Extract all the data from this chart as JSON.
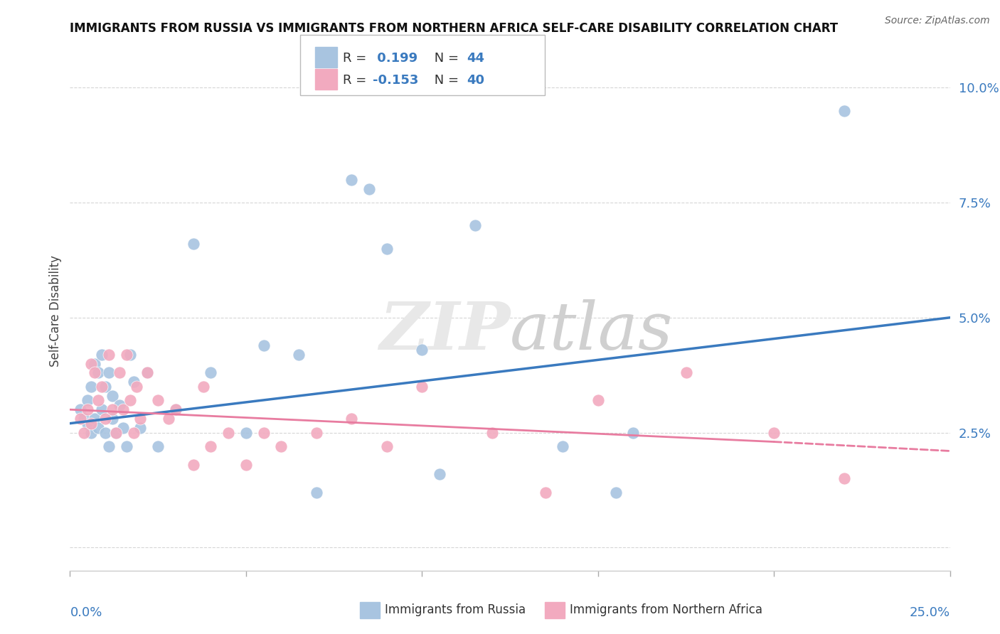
{
  "title": "IMMIGRANTS FROM RUSSIA VS IMMIGRANTS FROM NORTHERN AFRICA SELF-CARE DISABILITY CORRELATION CHART",
  "source": "Source: ZipAtlas.com",
  "ylabel": "Self-Care Disability",
  "xlim": [
    0.0,
    0.25
  ],
  "ylim": [
    -0.005,
    0.108
  ],
  "yticks": [
    0.0,
    0.025,
    0.05,
    0.075,
    0.1
  ],
  "ytick_labels": [
    "",
    "2.5%",
    "5.0%",
    "7.5%",
    "10.0%"
  ],
  "russia_R": 0.199,
  "russia_N": 44,
  "nafr_R": -0.153,
  "nafr_N": 40,
  "russia_color": "#a8c4e0",
  "nafr_color": "#f2aabf",
  "russia_line_color": "#3a7abf",
  "nafr_line_color": "#e87ca0",
  "russia_line_x0": 0.0,
  "russia_line_y0": 0.027,
  "russia_line_x1": 0.25,
  "russia_line_y1": 0.05,
  "nafr_line_x0": 0.0,
  "nafr_line_y0": 0.03,
  "nafr_line_solid_x1": 0.2,
  "nafr_line_solid_y1": 0.023,
  "nafr_line_dash_x1": 0.25,
  "nafr_line_dash_y1": 0.021,
  "russia_scatter_x": [
    0.003,
    0.004,
    0.005,
    0.005,
    0.006,
    0.006,
    0.007,
    0.007,
    0.008,
    0.008,
    0.009,
    0.009,
    0.01,
    0.01,
    0.011,
    0.011,
    0.012,
    0.012,
    0.013,
    0.014,
    0.015,
    0.016,
    0.017,
    0.018,
    0.02,
    0.022,
    0.025,
    0.03,
    0.035,
    0.04,
    0.05,
    0.055,
    0.065,
    0.07,
    0.08,
    0.085,
    0.09,
    0.1,
    0.105,
    0.115,
    0.14,
    0.155,
    0.22,
    0.16
  ],
  "russia_scatter_y": [
    0.03,
    0.028,
    0.032,
    0.027,
    0.035,
    0.025,
    0.04,
    0.028,
    0.038,
    0.026,
    0.042,
    0.03,
    0.035,
    0.025,
    0.038,
    0.022,
    0.028,
    0.033,
    0.025,
    0.031,
    0.026,
    0.022,
    0.042,
    0.036,
    0.026,
    0.038,
    0.022,
    0.03,
    0.066,
    0.038,
    0.025,
    0.044,
    0.042,
    0.012,
    0.08,
    0.078,
    0.065,
    0.043,
    0.016,
    0.07,
    0.022,
    0.012,
    0.095,
    0.025
  ],
  "nafr_scatter_x": [
    0.003,
    0.004,
    0.005,
    0.006,
    0.006,
    0.007,
    0.008,
    0.009,
    0.01,
    0.011,
    0.012,
    0.013,
    0.014,
    0.015,
    0.016,
    0.017,
    0.018,
    0.019,
    0.02,
    0.022,
    0.025,
    0.028,
    0.03,
    0.035,
    0.038,
    0.04,
    0.045,
    0.05,
    0.06,
    0.07,
    0.09,
    0.1,
    0.12,
    0.135,
    0.15,
    0.175,
    0.2,
    0.22,
    0.08,
    0.055
  ],
  "nafr_scatter_y": [
    0.028,
    0.025,
    0.03,
    0.04,
    0.027,
    0.038,
    0.032,
    0.035,
    0.028,
    0.042,
    0.03,
    0.025,
    0.038,
    0.03,
    0.042,
    0.032,
    0.025,
    0.035,
    0.028,
    0.038,
    0.032,
    0.028,
    0.03,
    0.018,
    0.035,
    0.022,
    0.025,
    0.018,
    0.022,
    0.025,
    0.022,
    0.035,
    0.025,
    0.012,
    0.032,
    0.038,
    0.025,
    0.015,
    0.028,
    0.025
  ]
}
